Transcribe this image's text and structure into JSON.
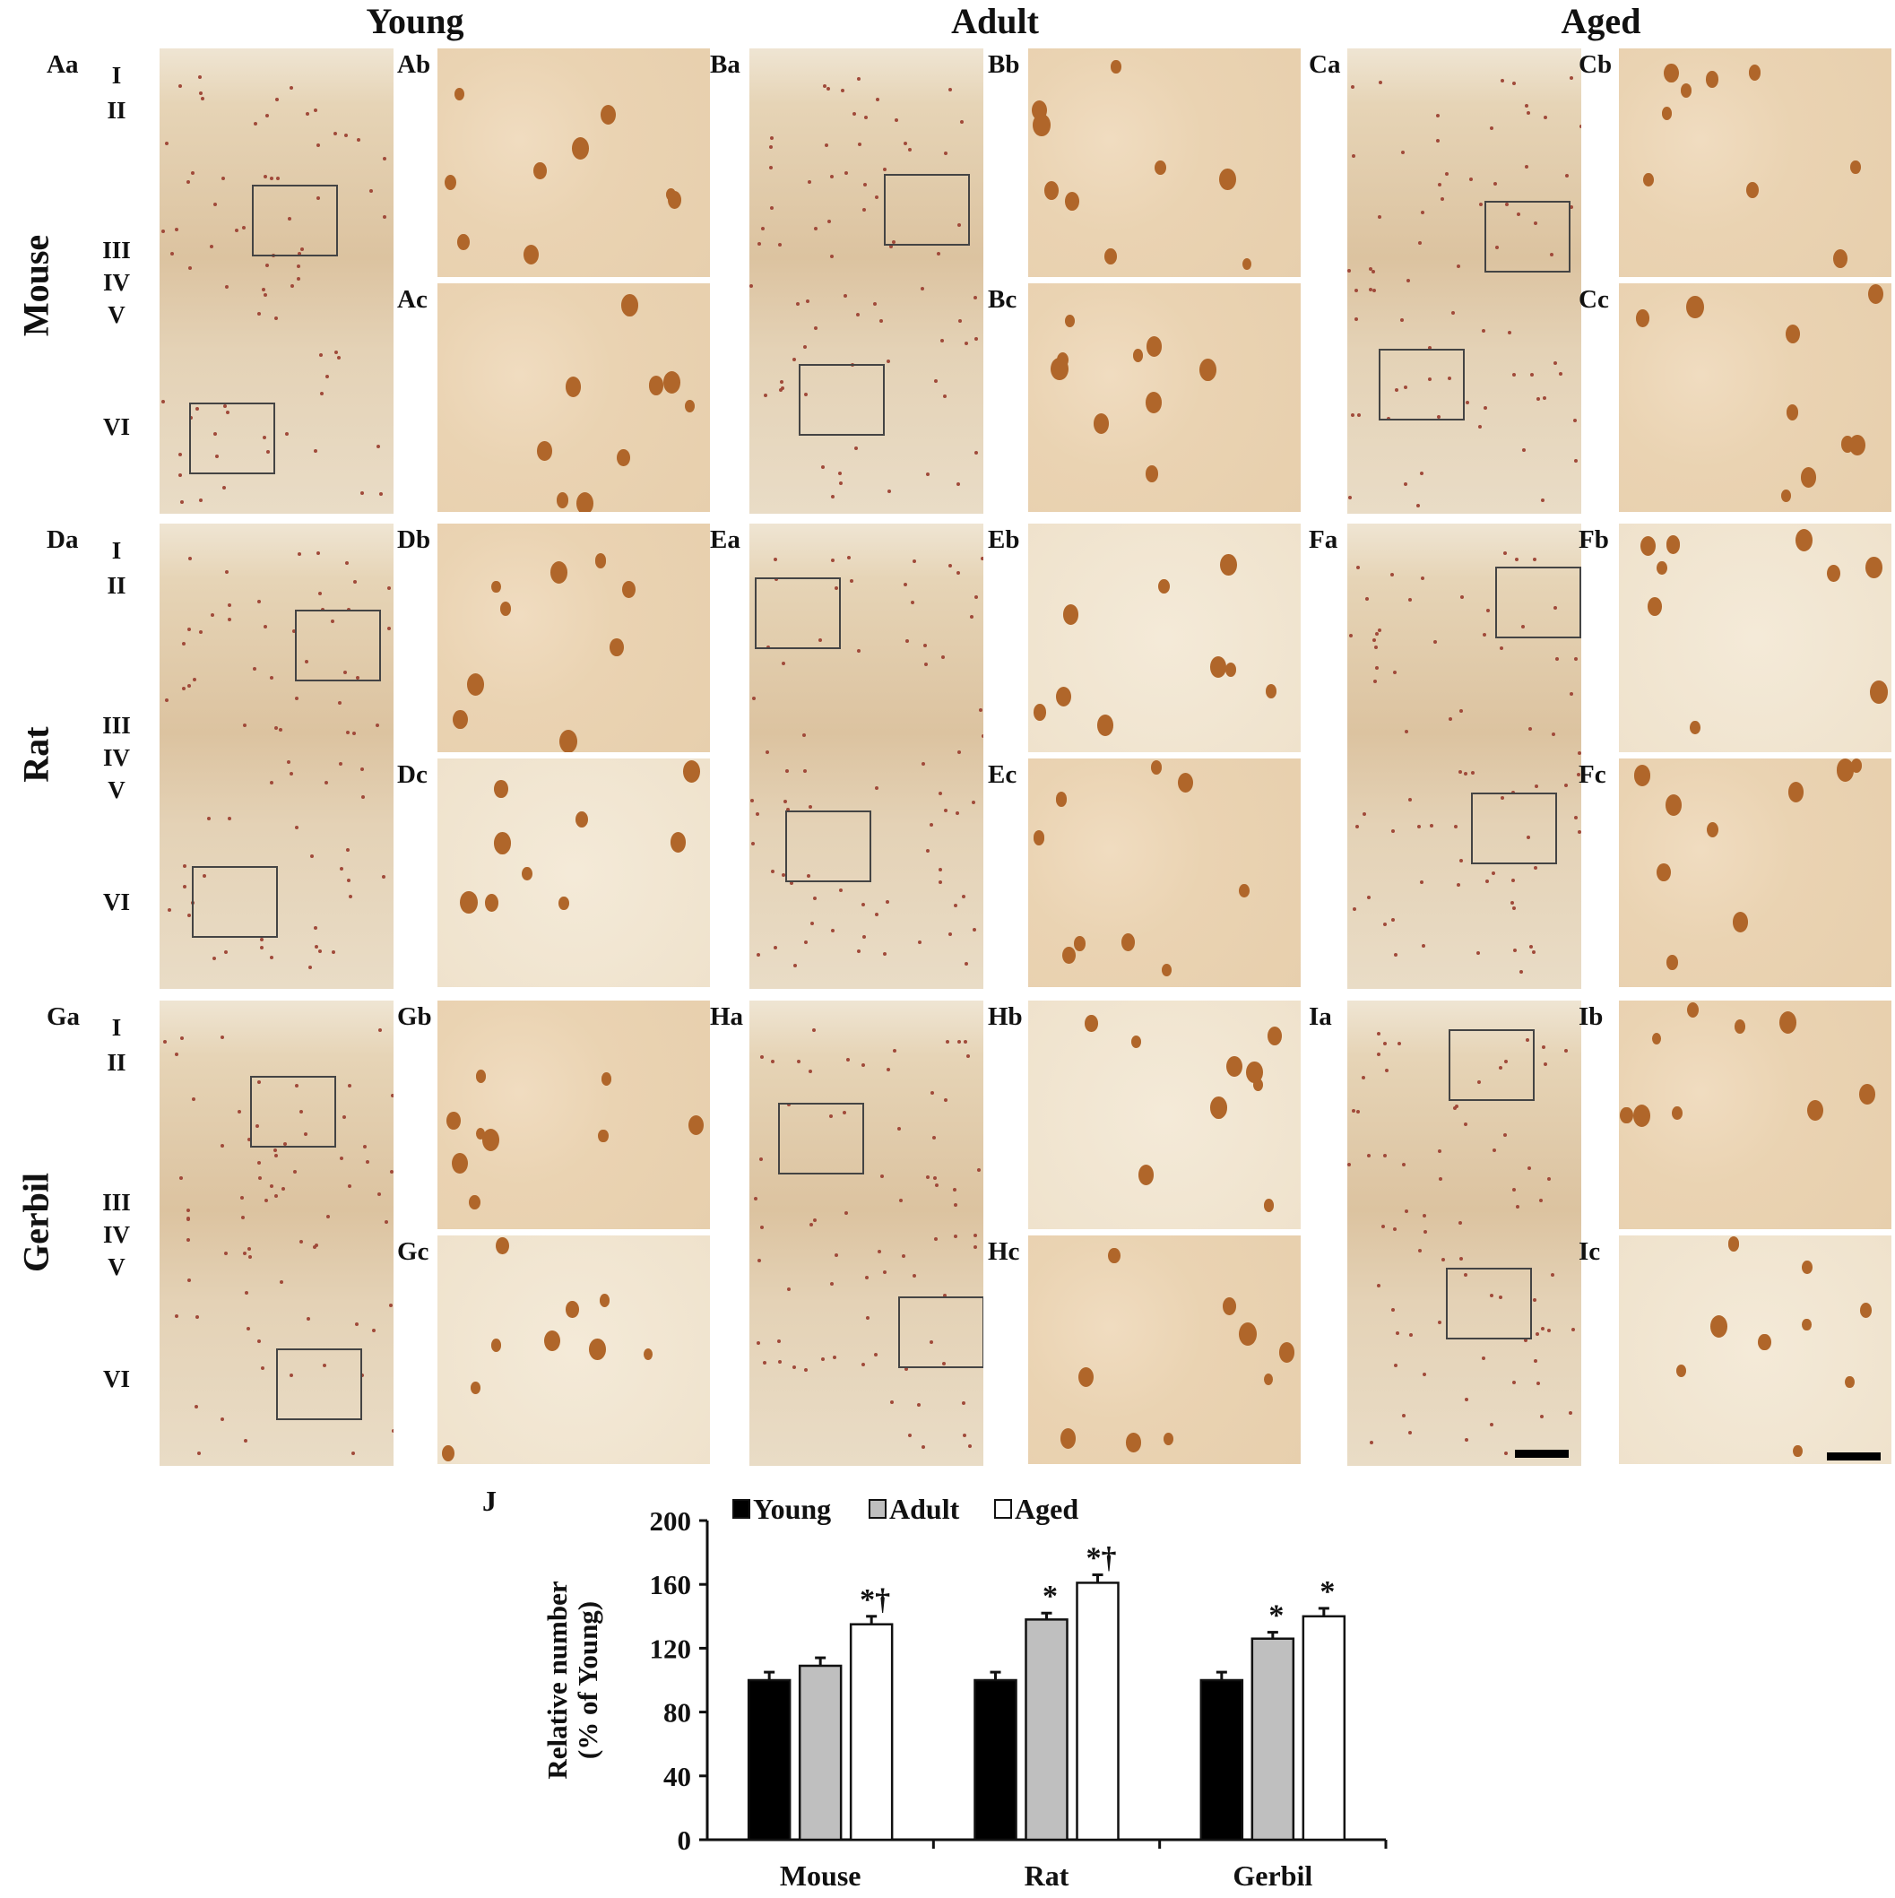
{
  "column_headers": [
    "Young",
    "Adult",
    "Aged"
  ],
  "row_headers": [
    "Mouse",
    "Rat",
    "Gerbil"
  ],
  "layer_labels": [
    "I",
    "II",
    "III",
    "IV",
    "V",
    "VI"
  ],
  "panels": [
    {
      "overview": "Aa",
      "top": "Ab",
      "bottom": "Ac"
    },
    {
      "overview": "Ba",
      "top": "Bb",
      "bottom": "Bc"
    },
    {
      "overview": "Ca",
      "top": "Cb",
      "bottom": "Cc"
    },
    {
      "overview": "Da",
      "top": "Db",
      "bottom": "Dc"
    },
    {
      "overview": "Ea",
      "top": "Eb",
      "bottom": "Ec"
    },
    {
      "overview": "Fa",
      "top": "Fb",
      "bottom": "Fc"
    },
    {
      "overview": "Ga",
      "top": "Gb",
      "bottom": "Gc"
    },
    {
      "overview": "Ha",
      "top": "Hb",
      "bottom": "Hc"
    },
    {
      "overview": "Ia",
      "top": "Ib",
      "bottom": "Ic"
    }
  ],
  "chart_data": {
    "panel_label": "J",
    "type": "bar",
    "categories": [
      "Mouse",
      "Rat",
      "Gerbil"
    ],
    "series": [
      {
        "name": "Young",
        "values": [
          100,
          100,
          100
        ],
        "errors": [
          5,
          5,
          5
        ],
        "color": "#000000",
        "annotations": [
          "",
          "",
          ""
        ]
      },
      {
        "name": "Adult",
        "values": [
          109,
          138,
          126
        ],
        "errors": [
          5,
          4,
          4
        ],
        "color": "#bfbfbf",
        "annotations": [
          "",
          "*",
          "*"
        ]
      },
      {
        "name": "Aged",
        "values": [
          135,
          161,
          140
        ],
        "errors": [
          5,
          5,
          5
        ],
        "color": "#ffffff",
        "annotations": [
          "*†",
          "*†",
          "*"
        ]
      }
    ],
    "ylabel_line1": "Relative number",
    "ylabel_line2": "(% of Young)",
    "xlabel": "",
    "ylim": [
      0,
      200
    ],
    "yticks": [
      "0",
      "40",
      "80",
      "120",
      "160",
      "200"
    ],
    "legend": "top",
    "grid": false
  }
}
